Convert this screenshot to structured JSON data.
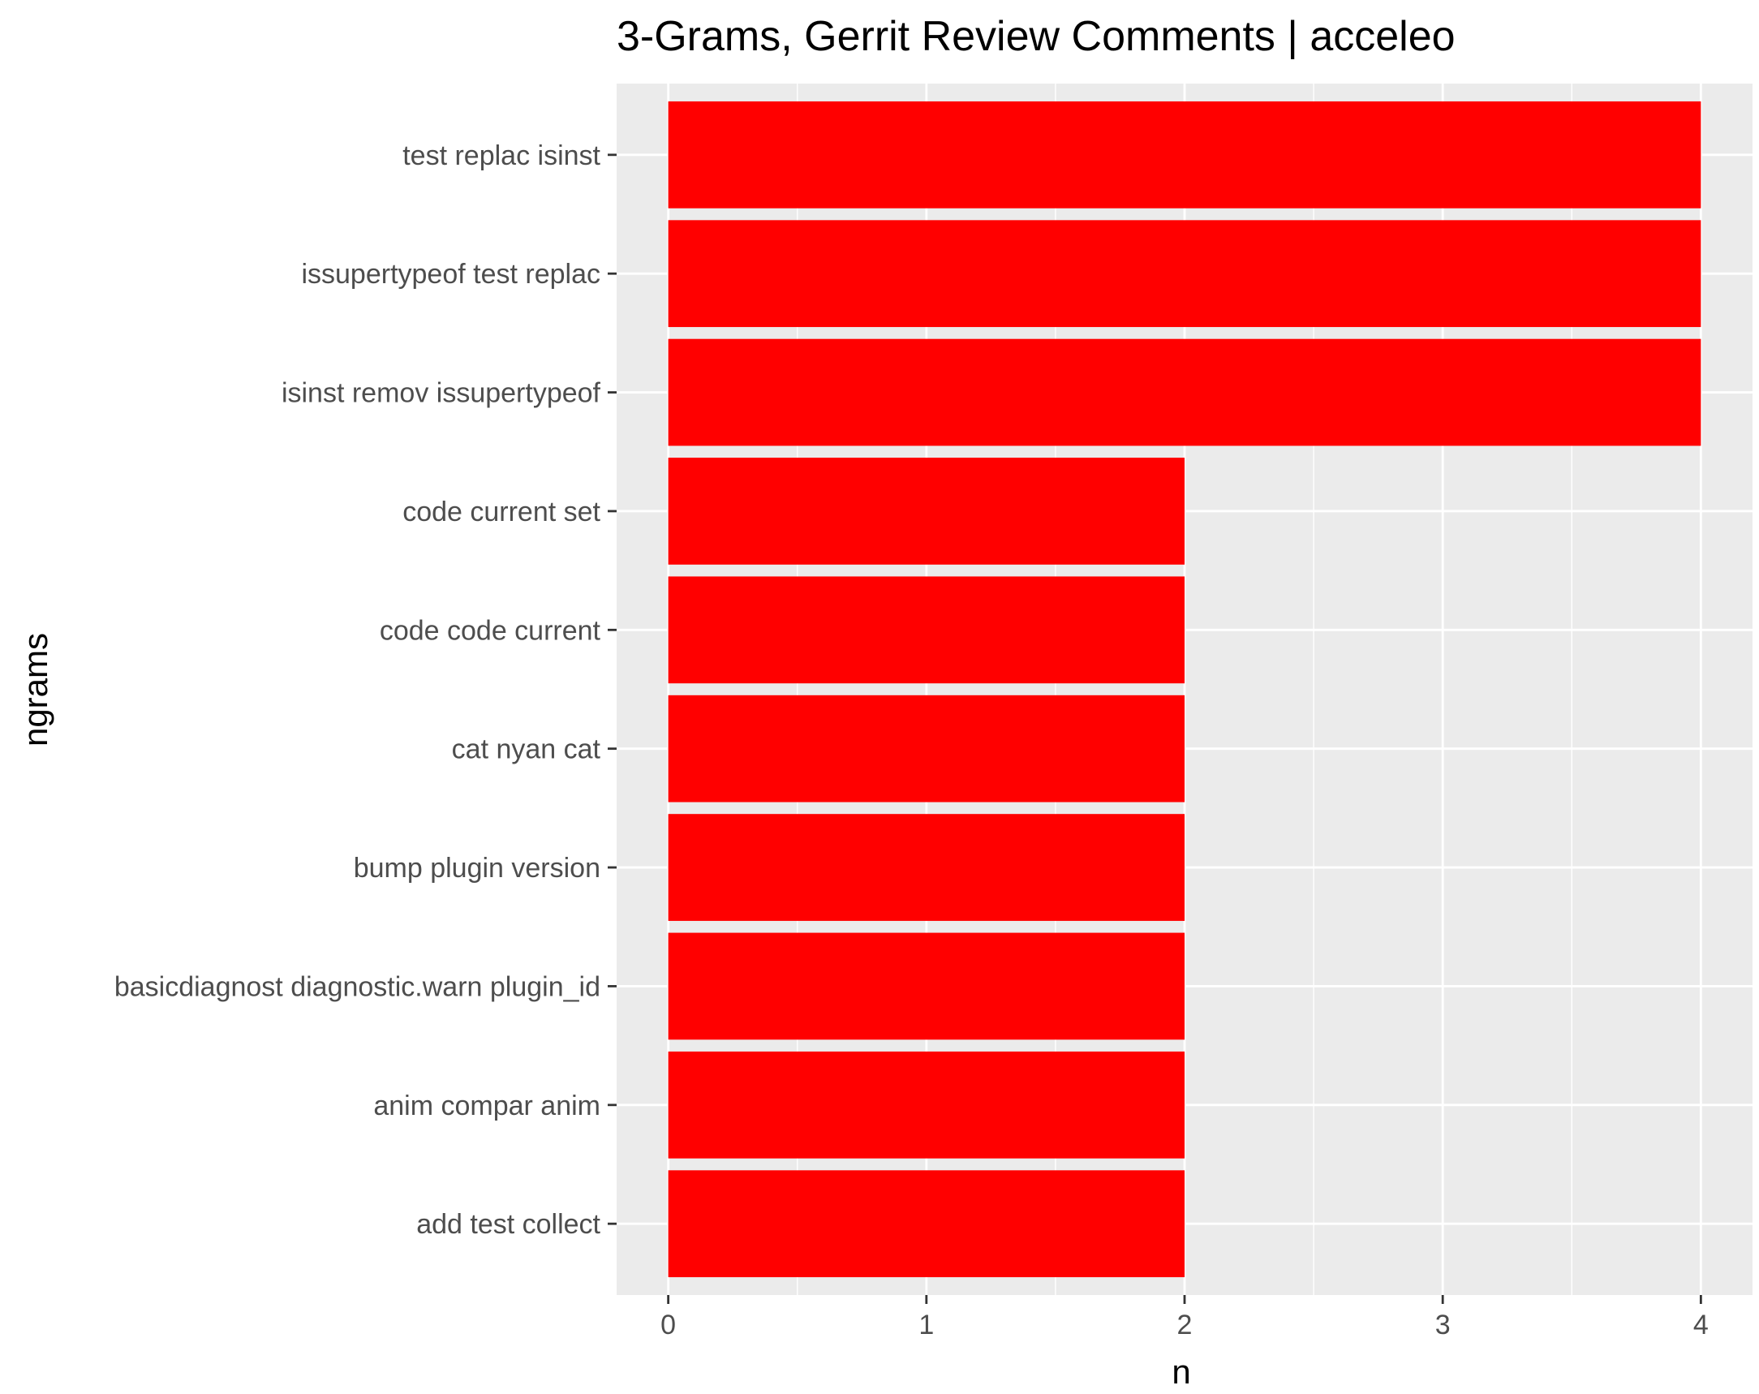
{
  "chart_data": {
    "type": "bar",
    "orientation": "horizontal",
    "title": "3-Grams, Gerrit Review Comments | acceleo",
    "xlabel": "n",
    "ylabel": "ngrams",
    "categories": [
      "test replac isinst",
      "issupertypeof test replac",
      "isinst remov issupertypeof",
      "code current set",
      "code code current",
      "cat nyan cat",
      "bump plugin version",
      "basicdiagnost diagnostic.warn plugin_id",
      "anim compar anim",
      "add test collect"
    ],
    "values": [
      4,
      4,
      4,
      2,
      2,
      2,
      2,
      2,
      2,
      2
    ],
    "xlim": [
      -0.2,
      4.2
    ],
    "xticks": [
      0,
      1,
      2,
      3,
      4
    ],
    "grid": true,
    "legend": "none",
    "colors": {
      "bar": "#ff0000",
      "panel": "#ebebeb",
      "grid": "#ffffff"
    }
  }
}
